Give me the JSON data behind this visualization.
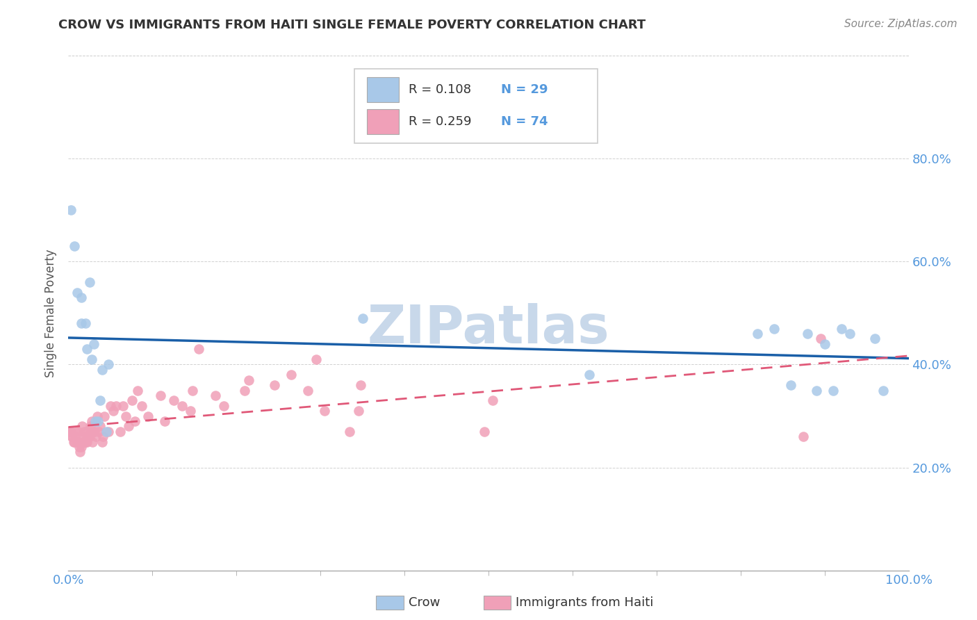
{
  "title": "CROW VS IMMIGRANTS FROM HAITI SINGLE FEMALE POVERTY CORRELATION CHART",
  "source": "Source: ZipAtlas.com",
  "ylabel": "Single Female Poverty",
  "legend_label1": "Crow",
  "legend_label2": "Immigrants from Haiti",
  "r1": "0.108",
  "n1": "29",
  "r2": "0.259",
  "n2": "74",
  "crow_color": "#a8c8e8",
  "haiti_color": "#f0a0b8",
  "crow_line_color": "#1a5fa8",
  "haiti_line_color": "#e05878",
  "watermark": "ZIPatlas",
  "watermark_color": "#c8d8ea",
  "background_color": "#ffffff",
  "tick_color": "#5599dd",
  "xlim": [
    0,
    1.0
  ],
  "ylim": [
    0,
    1.0
  ],
  "crow_x": [
    0.003,
    0.007,
    0.01,
    0.015,
    0.015,
    0.02,
    0.022,
    0.025,
    0.028,
    0.03,
    0.032,
    0.035,
    0.038,
    0.04,
    0.045,
    0.048,
    0.35,
    0.62,
    0.82,
    0.84,
    0.86,
    0.88,
    0.89,
    0.9,
    0.91,
    0.92,
    0.93,
    0.96,
    0.97
  ],
  "crow_y": [
    0.7,
    0.63,
    0.54,
    0.53,
    0.48,
    0.48,
    0.43,
    0.56,
    0.41,
    0.44,
    0.29,
    0.29,
    0.33,
    0.39,
    0.27,
    0.4,
    0.49,
    0.38,
    0.46,
    0.47,
    0.36,
    0.46,
    0.35,
    0.44,
    0.35,
    0.47,
    0.46,
    0.45,
    0.35
  ],
  "haiti_x": [
    0.001,
    0.002,
    0.003,
    0.004,
    0.005,
    0.006,
    0.007,
    0.008,
    0.009,
    0.01,
    0.011,
    0.012,
    0.013,
    0.014,
    0.015,
    0.016,
    0.017,
    0.018,
    0.019,
    0.02,
    0.021,
    0.022,
    0.023,
    0.024,
    0.025,
    0.026,
    0.027,
    0.028,
    0.029,
    0.03,
    0.031,
    0.033,
    0.034,
    0.036,
    0.038,
    0.04,
    0.041,
    0.043,
    0.048,
    0.05,
    0.053,
    0.057,
    0.062,
    0.065,
    0.068,
    0.072,
    0.076,
    0.079,
    0.082,
    0.087,
    0.095,
    0.11,
    0.115,
    0.125,
    0.135,
    0.145,
    0.148,
    0.155,
    0.175,
    0.185,
    0.21,
    0.215,
    0.245,
    0.265,
    0.285,
    0.295,
    0.305,
    0.335,
    0.345,
    0.348,
    0.495,
    0.505,
    0.875,
    0.895
  ],
  "haiti_y": [
    0.27,
    0.27,
    0.27,
    0.26,
    0.26,
    0.25,
    0.25,
    0.27,
    0.26,
    0.25,
    0.27,
    0.25,
    0.24,
    0.23,
    0.24,
    0.28,
    0.26,
    0.25,
    0.27,
    0.25,
    0.26,
    0.25,
    0.27,
    0.26,
    0.26,
    0.28,
    0.27,
    0.29,
    0.25,
    0.27,
    0.27,
    0.26,
    0.3,
    0.27,
    0.28,
    0.25,
    0.26,
    0.3,
    0.27,
    0.32,
    0.31,
    0.32,
    0.27,
    0.32,
    0.3,
    0.28,
    0.33,
    0.29,
    0.35,
    0.32,
    0.3,
    0.34,
    0.29,
    0.33,
    0.32,
    0.31,
    0.35,
    0.43,
    0.34,
    0.32,
    0.35,
    0.37,
    0.36,
    0.38,
    0.35,
    0.41,
    0.31,
    0.27,
    0.31,
    0.36,
    0.27,
    0.33,
    0.26,
    0.45
  ]
}
